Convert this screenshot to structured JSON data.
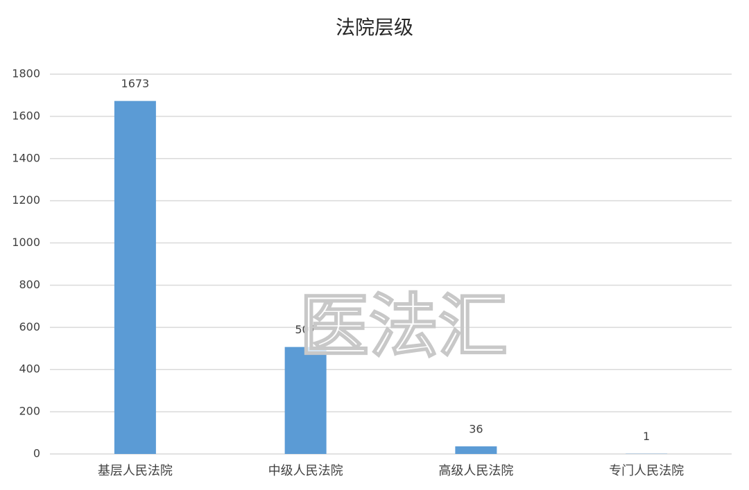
{
  "chart_data": {
    "type": "bar",
    "title": "法院层级",
    "categories": [
      "基层人民法院",
      "中级人民法院",
      "高级人民法院",
      "专门人民法院"
    ],
    "values": [
      1673,
      507,
      36,
      1
    ],
    "color": "#5b9bd5",
    "ylim": [
      0,
      1800
    ],
    "yticks": [
      0,
      200,
      400,
      600,
      800,
      1000,
      1200,
      1400,
      1600,
      1800
    ],
    "grid": true,
    "watermark": "医法汇"
  }
}
